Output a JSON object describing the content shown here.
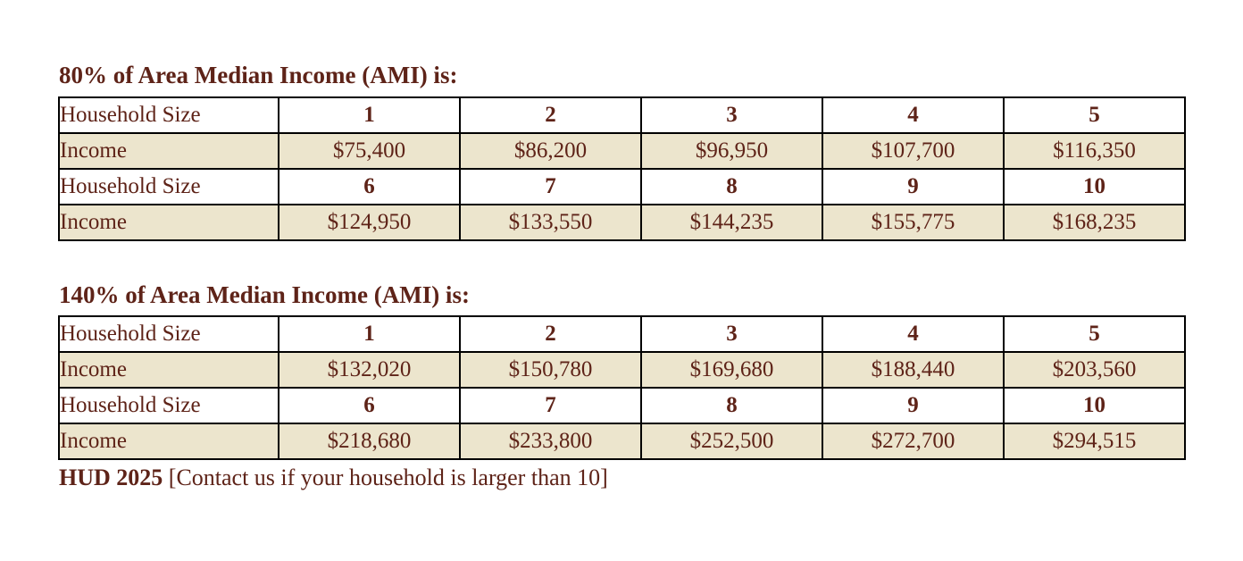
{
  "colors": {
    "text_maroon": "#5e2318",
    "income_row_bg": "#ece5cd",
    "table_border": "#000000",
    "page_bg": "#ffffff"
  },
  "tables": [
    {
      "title": "80% of Area Median Income (AMI) is:",
      "size_label": "Household Size",
      "income_label": "Income",
      "rows": [
        {
          "sizes": [
            "1",
            "2",
            "3",
            "4",
            "5"
          ],
          "incomes": [
            "$75,400",
            "$86,200",
            "$96,950",
            "$107,700",
            "$116,350"
          ]
        },
        {
          "sizes": [
            "6",
            "7",
            "8",
            "9",
            "10"
          ],
          "incomes": [
            "$124,950",
            "$133,550",
            "$144,235",
            "$155,775",
            "$168,235"
          ]
        }
      ]
    },
    {
      "title": "140% of Area Median Income (AMI) is:",
      "size_label": "Household Size",
      "income_label": "Income",
      "rows": [
        {
          "sizes": [
            "1",
            "2",
            "3",
            "4",
            "5"
          ],
          "incomes": [
            "$132,020",
            "$150,780",
            "$169,680",
            "$188,440",
            "$203,560"
          ]
        },
        {
          "sizes": [
            "6",
            "7",
            "8",
            "9",
            "10"
          ],
          "incomes": [
            "$218,680",
            "$233,800",
            "$252,500",
            "$272,700",
            "$294,515"
          ]
        }
      ]
    }
  ],
  "footer": {
    "source": "HUD 2025",
    "note": " [Contact us if your household is larger than 10]"
  }
}
